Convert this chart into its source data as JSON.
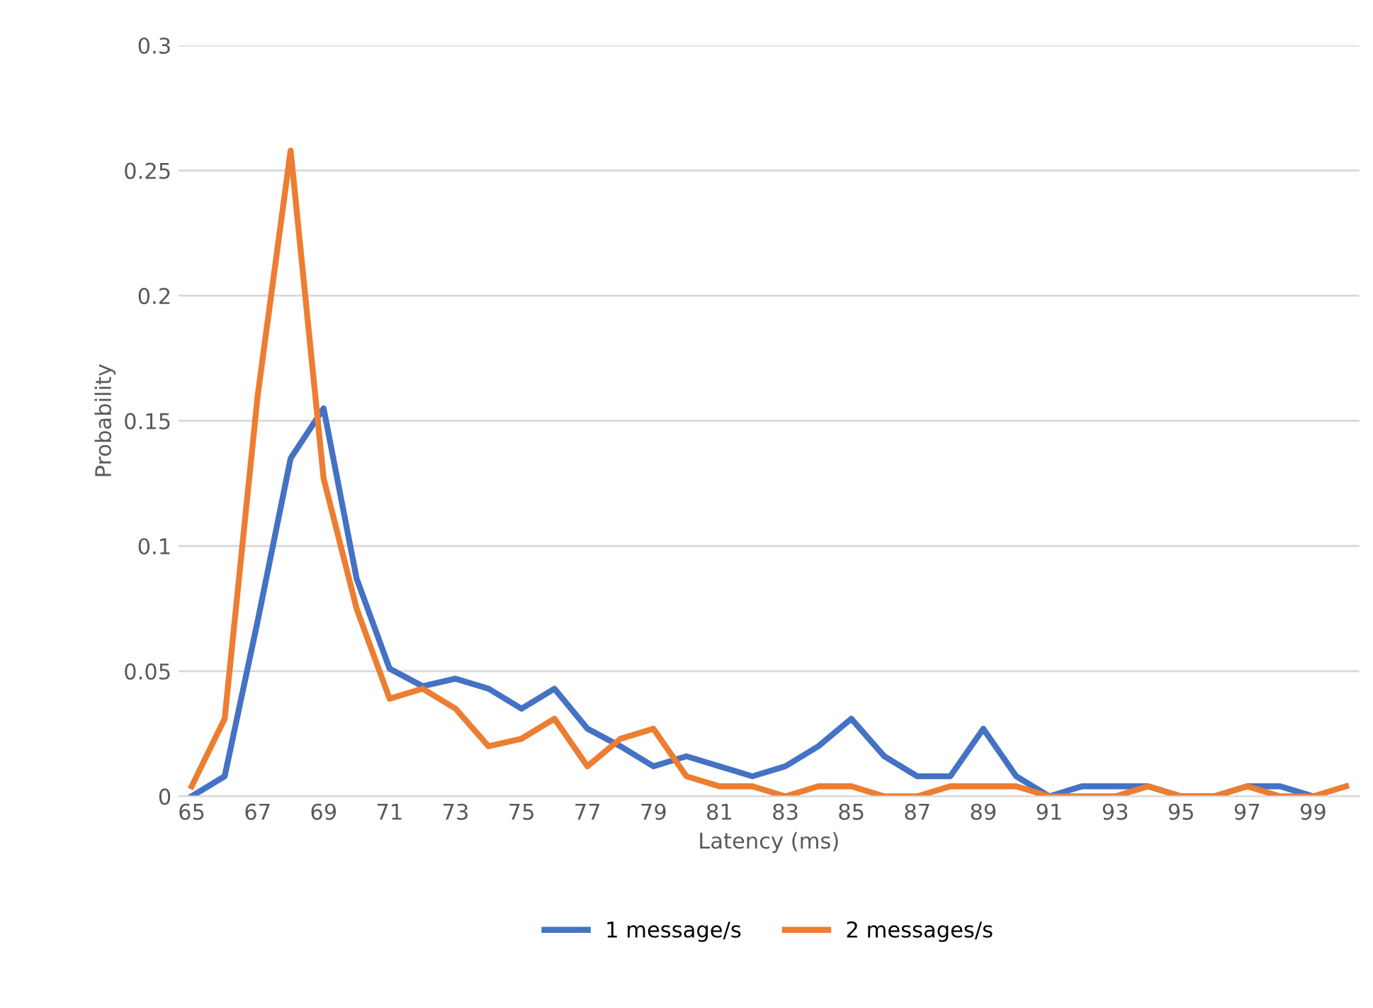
{
  "chart_data": {
    "type": "line",
    "xlabel": "Latency (ms)",
    "ylabel": "Probability",
    "categories": [
      "65",
      null,
      "67",
      null,
      "69",
      null,
      "71",
      null,
      "73",
      null,
      "75",
      null,
      "77",
      null,
      "79",
      null,
      "81",
      null,
      "83",
      null,
      "85",
      null,
      "87",
      null,
      "89",
      null,
      "91",
      null,
      "93",
      null,
      "95",
      null,
      "97",
      null,
      "99",
      null
    ],
    "series": [
      {
        "name": "1 message/s",
        "color": "#4472c4",
        "values": [
          0,
          0.008,
          0.07,
          0.135,
          0.155,
          0.087,
          0.051,
          0.044,
          0.047,
          0.043,
          0.035,
          0.043,
          0.027,
          0.02,
          0.012,
          0.016,
          0.012,
          0.008,
          0.012,
          0.02,
          0.031,
          0.016,
          0.008,
          0.008,
          0.027,
          0.008,
          0,
          0.004,
          0.004,
          0.004,
          0,
          0,
          0.004,
          0.004,
          0,
          null
        ]
      },
      {
        "name": "2 messages/s",
        "color": "#ed7d31",
        "values": [
          0.004,
          0.031,
          0.16,
          0.258,
          0.127,
          0.075,
          0.039,
          0.043,
          0.035,
          0.02,
          0.023,
          0.031,
          0.012,
          0.023,
          0.027,
          0.008,
          0.004,
          0.004,
          0,
          0.004,
          0.004,
          0,
          0,
          0.004,
          0.004,
          0.004,
          0,
          0,
          0,
          0.004,
          0,
          0,
          0.004,
          0,
          0,
          0.004
        ]
      }
    ],
    "ylim": [
      0,
      0.3
    ],
    "yticks": [
      0,
      0.05,
      0.1,
      0.15,
      0.2,
      0.25,
      0.3
    ],
    "grid": "y",
    "legend": "bottom",
    "marker": "none",
    "line_style": "solid"
  }
}
